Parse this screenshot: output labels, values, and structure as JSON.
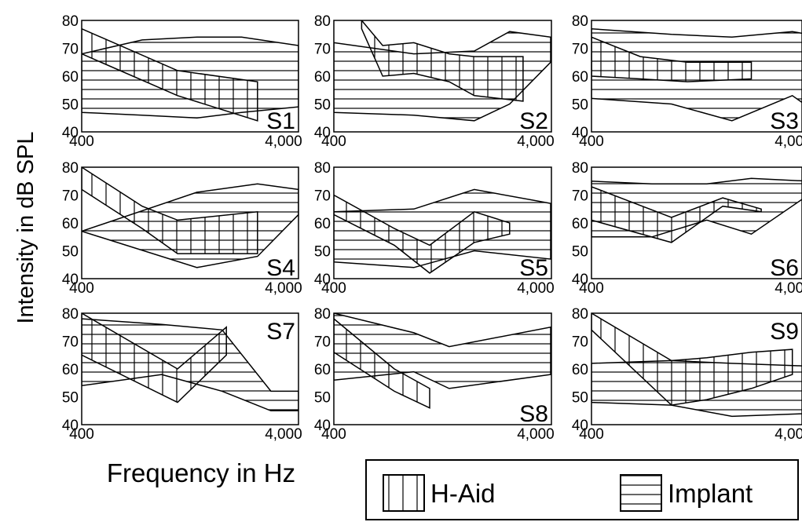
{
  "chart_data": {
    "type": "area",
    "ylabel": "Intensity in dB SPL",
    "xlabel": "Frequency in Hz",
    "xscale": "log",
    "xlim": [
      400,
      4800
    ],
    "ylim": [
      40,
      80
    ],
    "x_ticks": [
      400,
      4000
    ],
    "x_tick_labels": [
      "400",
      "4,000"
    ],
    "y_ticks": [
      40,
      50,
      60,
      70,
      80
    ],
    "legend": {
      "position": "bottom-right",
      "entries": [
        {
          "label": "H-Aid",
          "pattern": "vertical-hatch"
        },
        {
          "label": "Implant",
          "pattern": "horizontal-hatch"
        }
      ]
    },
    "panels": [
      {
        "label": "S1",
        "haid": {
          "x": [
            400,
            1200,
            3000
          ],
          "upper": [
            77,
            62,
            58
          ],
          "lower": [
            68,
            53,
            44
          ]
        },
        "implant": {
          "x": [
            400,
            800,
            1500,
            2500,
            4800
          ],
          "upper": [
            68,
            73,
            74,
            74,
            71
          ],
          "lower": [
            47,
            46,
            45,
            47,
            49
          ]
        }
      },
      {
        "label": "S2",
        "haid": {
          "x": [
            550,
            700,
            1000,
            1500,
            2000,
            3500
          ],
          "upper": [
            80,
            71,
            72,
            68,
            67,
            67
          ],
          "lower": [
            77,
            60,
            61,
            58,
            53,
            51
          ]
        },
        "implant": {
          "x": [
            400,
            1000,
            2000,
            3000,
            4800
          ],
          "upper": [
            72,
            68,
            69,
            76,
            74
          ],
          "lower": [
            47,
            46,
            44,
            50,
            65
          ]
        }
      },
      {
        "label": "S3",
        "haid": {
          "x": [
            400,
            700,
            1200,
            2500
          ],
          "upper": [
            74,
            67,
            65,
            65
          ],
          "lower": [
            60,
            59,
            58,
            59
          ]
        },
        "implant": {
          "x": [
            400,
            1000,
            2000,
            4000,
            4800
          ],
          "upper": [
            77,
            75,
            74,
            76,
            75
          ],
          "lower": [
            52,
            50,
            44,
            53,
            49
          ]
        }
      },
      {
        "label": "S4",
        "haid": {
          "x": [
            400,
            800,
            1200,
            3000
          ],
          "upper": [
            80,
            66,
            61,
            64
          ],
          "lower": [
            72,
            58,
            49,
            49
          ]
        },
        "implant": {
          "x": [
            400,
            1500,
            3000,
            4800
          ],
          "upper": [
            57,
            71,
            74,
            72
          ],
          "lower": [
            57,
            44,
            48,
            63
          ]
        }
      },
      {
        "label": "S5",
        "haid": {
          "x": [
            400,
            800,
            1200,
            2000,
            3000
          ],
          "upper": [
            70,
            58,
            52,
            64,
            60
          ],
          "lower": [
            63,
            52,
            42,
            53,
            56
          ]
        },
        "implant": {
          "x": [
            400,
            1000,
            2000,
            4800
          ],
          "upper": [
            64,
            65,
            72,
            67
          ],
          "lower": [
            46,
            44,
            50,
            47
          ]
        }
      },
      {
        "label": "S6",
        "haid": {
          "x": [
            400,
            1000,
            1800,
            2800
          ],
          "upper": [
            73,
            62,
            69,
            65
          ],
          "lower": [
            61,
            53,
            66,
            64
          ]
        },
        "implant": {
          "x": [
            400,
            800,
            1500,
            2500,
            4800
          ],
          "upper": [
            75,
            74,
            74,
            76,
            75
          ],
          "lower": [
            55,
            55,
            61,
            56,
            70
          ]
        }
      },
      {
        "label": "S7",
        "haid": {
          "x": [
            400,
            1200,
            2100
          ],
          "upper": [
            80,
            60,
            75
          ],
          "lower": [
            65,
            48,
            65
          ]
        },
        "implant": {
          "x": [
            400,
            1000,
            2000,
            3500,
            4800
          ],
          "upper": [
            78,
            76,
            74,
            52,
            52
          ],
          "lower": [
            54,
            58,
            52,
            45,
            45
          ]
        }
      },
      {
        "label": "S8",
        "haid": {
          "x": [
            400,
            800,
            1200
          ],
          "upper": [
            78,
            60,
            53
          ],
          "lower": [
            66,
            52,
            46
          ]
        },
        "implant": {
          "x": [
            400,
            1000,
            1500,
            4800
          ],
          "upper": [
            80,
            73,
            68,
            75
          ],
          "lower": [
            56,
            59,
            53,
            58
          ]
        }
      },
      {
        "label": "S9",
        "haid": {
          "x": [
            400,
            1000,
            1500,
            2500,
            4000
          ],
          "upper": [
            80,
            63,
            64,
            66,
            67
          ],
          "lower": [
            74,
            47,
            49,
            53,
            58
          ]
        },
        "implant": {
          "x": [
            400,
            1000,
            2000,
            4800
          ],
          "upper": [
            62,
            63,
            62,
            61
          ],
          "lower": [
            48,
            47,
            43,
            44
          ]
        }
      }
    ]
  },
  "colors": {
    "line": "#000000",
    "background": "#ffffff"
  }
}
